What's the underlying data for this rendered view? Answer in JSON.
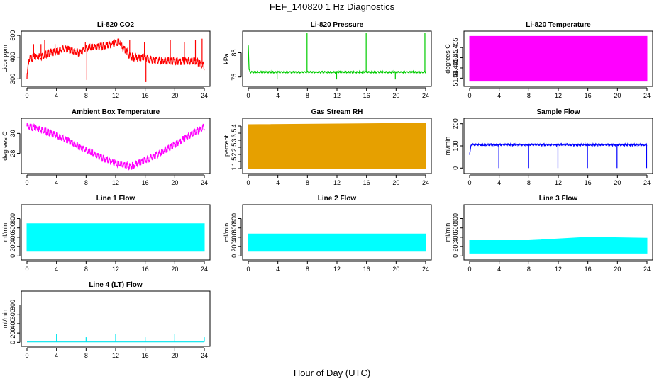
{
  "figure": {
    "title": "FEF_140820  1 Hz Diagnostics",
    "xlabel": "Hour of Day (UTC)"
  },
  "chart_data": [
    {
      "type": "line",
      "title": "Li-820 CO2",
      "ylabel": "Licor ppm",
      "color": "#ff0000",
      "xlim": [
        0,
        24
      ],
      "ylim": [
        275,
        510
      ],
      "xticks": [
        0,
        4,
        8,
        12,
        16,
        20,
        24
      ],
      "yticks": [
        300,
        400,
        500
      ],
      "x": [
        0,
        0.25,
        0.5,
        1,
        2,
        3,
        4,
        5,
        6,
        7,
        8,
        9,
        10,
        11,
        12,
        12.5,
        13,
        14,
        15,
        16,
        17,
        18,
        19,
        20,
        21,
        22,
        23,
        24
      ],
      "y": [
        300,
        390,
        395,
        400,
        405,
        420,
        425,
        440,
        430,
        420,
        440,
        445,
        450,
        455,
        465,
        470,
        440,
        405,
        395,
        400,
        385,
        383,
        382,
        382,
        382,
        382,
        381,
        360
      ],
      "band": 18,
      "spikes": [
        [
          0.9,
          460
        ],
        [
          1.9,
          460
        ],
        [
          2.4,
          480
        ],
        [
          3.8,
          460
        ],
        [
          7.9,
          470
        ],
        [
          8.1,
          295
        ],
        [
          10.9,
          470
        ],
        [
          13.9,
          480
        ],
        [
          15.9,
          470
        ],
        [
          16.1,
          285
        ],
        [
          19.4,
          480
        ],
        [
          21.3,
          470
        ],
        [
          22.8,
          480
        ],
        [
          23.7,
          485
        ]
      ]
    },
    {
      "type": "line",
      "title": "Li-820 Pressure",
      "ylabel": "kPa",
      "color": "#00cc00",
      "xlim": [
        0,
        24
      ],
      "ylim": [
        72,
        93
      ],
      "xticks": [
        0,
        4,
        8,
        12,
        16,
        20,
        24
      ],
      "yticks": [
        75,
        85
      ],
      "x": [
        0,
        0.1,
        0.3,
        4,
        8,
        12,
        16,
        20,
        24
      ],
      "y": [
        88,
        78,
        77,
        77,
        77,
        77,
        77,
        77,
        77
      ],
      "band": 0.3,
      "spikes": [
        [
          3.9,
          74
        ],
        [
          7.95,
          93
        ],
        [
          11.95,
          74
        ],
        [
          15.95,
          93
        ],
        [
          19.9,
          74
        ],
        [
          23.9,
          93
        ]
      ]
    },
    {
      "type": "area",
      "title": "Li-820 Temperature",
      "ylabel": "degrees C",
      "color": "#ff00ff",
      "xlim": [
        0,
        24
      ],
      "ylim": [
        51.437,
        51.462
      ],
      "xticks": [
        0,
        4,
        8,
        12,
        16,
        20,
        24
      ],
      "yticks": [
        51.44,
        51.445,
        51.45,
        51.455
      ],
      "x": [
        0,
        24
      ],
      "ymin": [
        51.4385,
        51.4385
      ],
      "ymax": [
        51.4605,
        51.4605
      ]
    },
    {
      "type": "line",
      "title": "Ambient Box Temperature",
      "ylabel": "degrees C",
      "color": "#ff00ff",
      "xlim": [
        0,
        24
      ],
      "ylim": [
        26.2,
        31.3
      ],
      "xticks": [
        0,
        4,
        8,
        12,
        16,
        20,
        24
      ],
      "yticks": [
        28,
        30
      ],
      "x": [
        0,
        2,
        4,
        6,
        8,
        10,
        12,
        13,
        14,
        15,
        16,
        18,
        20,
        22,
        24
      ],
      "y": [
        30.7,
        30.4,
        29.8,
        29.1,
        28.3,
        27.6,
        27.0,
        26.8,
        26.7,
        27.0,
        27.3,
        28.0,
        28.9,
        29.8,
        30.7
      ],
      "band": 0.35,
      "spikes": []
    },
    {
      "type": "area",
      "title": "Gas Stream RH",
      "ylabel": "percent",
      "color": "#e6a000",
      "xlim": [
        0,
        24
      ],
      "ylim": [
        0.8,
        4.4
      ],
      "xticks": [
        0,
        4,
        8,
        12,
        16,
        20,
        24
      ],
      "yticks": [
        1.0,
        1.5,
        2.0,
        2.5,
        3.0,
        3.5,
        4.0
      ],
      "x": [
        0,
        24
      ],
      "ymin": [
        1.0,
        1.0
      ],
      "ymax": [
        4.1,
        4.2
      ]
    },
    {
      "type": "line",
      "title": "Sample Flow",
      "ylabel": "ml/min",
      "color": "#0000ff",
      "xlim": [
        0,
        24
      ],
      "ylim": [
        -15,
        215
      ],
      "xticks": [
        0,
        4,
        8,
        12,
        16,
        20,
        24
      ],
      "yticks": [
        0,
        100,
        200
      ],
      "x": [
        0,
        0.2,
        4,
        8,
        12,
        16,
        20,
        24
      ],
      "y": [
        60,
        105,
        105,
        105,
        105,
        105,
        105,
        105
      ],
      "band": 4,
      "spikes": [
        [
          3.95,
          0
        ],
        [
          7.95,
          0
        ],
        [
          11.95,
          0
        ],
        [
          15.95,
          0
        ],
        [
          19.95,
          0
        ],
        [
          23.95,
          0
        ]
      ]
    },
    {
      "type": "area",
      "title": "Line 1 Flow",
      "ylabel": "ml/min",
      "color": "#00ffff",
      "xlim": [
        0,
        24
      ],
      "ylim": [
        -40,
        1050
      ],
      "xticks": [
        0,
        4,
        8,
        12,
        16,
        20,
        24
      ],
      "yticks": [
        0,
        200,
        400,
        600,
        800
      ],
      "x": [
        0,
        24
      ],
      "ymin": [
        100,
        100
      ],
      "ymax": [
        690,
        690
      ]
    },
    {
      "type": "area",
      "title": "Line 2 Flow",
      "ylabel": "ml/min",
      "color": "#00ffff",
      "xlim": [
        0,
        24
      ],
      "ylim": [
        -40,
        1050
      ],
      "xticks": [
        0,
        4,
        8,
        12,
        16,
        20,
        24
      ],
      "yticks": [
        0,
        200,
        400,
        600,
        800
      ],
      "x": [
        0,
        24
      ],
      "ymin": [
        100,
        100
      ],
      "ymax": [
        470,
        470
      ]
    },
    {
      "type": "area",
      "title": "Line 3 Flow",
      "ylabel": "ml/min",
      "color": "#00ffff",
      "xlim": [
        0,
        24
      ],
      "ylim": [
        -40,
        1050
      ],
      "xticks": [
        0,
        4,
        8,
        12,
        16,
        20,
        24
      ],
      "yticks": [
        0,
        200,
        400,
        600,
        800
      ],
      "x": [
        0,
        8,
        16,
        24
      ],
      "ymin": [
        60,
        60,
        60,
        60
      ],
      "ymax": [
        330,
        330,
        400,
        380
      ]
    },
    {
      "type": "line",
      "title": "Line 4 (LT) Flow",
      "ylabel": "ml/min",
      "color": "#00e5ee",
      "xlim": [
        0,
        24
      ],
      "ylim": [
        -40,
        1050
      ],
      "xticks": [
        0,
        4,
        8,
        12,
        16,
        20,
        24
      ],
      "yticks": [
        0,
        200,
        400,
        600,
        800
      ],
      "x": [
        0,
        24
      ],
      "y": [
        10,
        10
      ],
      "band": 0,
      "spikes": [
        [
          4,
          180
        ],
        [
          8,
          110
        ],
        [
          12,
          180
        ],
        [
          16,
          110
        ],
        [
          20,
          180
        ],
        [
          24,
          110
        ]
      ]
    }
  ]
}
